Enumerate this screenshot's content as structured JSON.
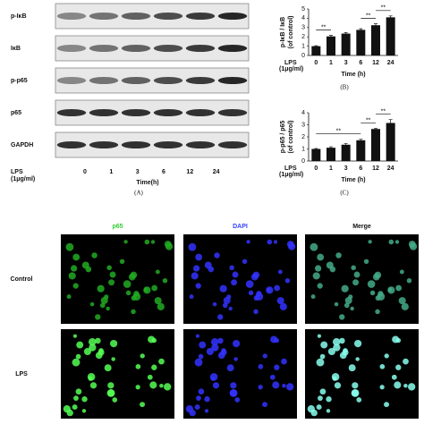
{
  "blot": {
    "bands": [
      "p-IκB",
      "IκB",
      "p-p65",
      "p65",
      "GAPDH"
    ],
    "row_label": [
      "LPS",
      "(1μg/ml)"
    ],
    "lanes": [
      "0",
      "1",
      "3",
      "6",
      "12",
      "24"
    ],
    "xlabel": "Time(h)",
    "panel_label": "(A)"
  },
  "chart_data": [
    {
      "type": "bar",
      "ylabel": "p-IκB / IκB",
      "ylabel2": "(of control)",
      "xlabel": "Time (h)",
      "row_label": [
        "LPS",
        "(1μg/ml)"
      ],
      "panel_label": "(B)",
      "categories": [
        "0",
        "1",
        "3",
        "6",
        "12",
        "24"
      ],
      "values": [
        1,
        2.05,
        2.35,
        2.75,
        3.25,
        4.1
      ],
      "errors": [
        0.05,
        0.1,
        0.1,
        0.12,
        0.15,
        0.15
      ],
      "color": "#111111",
      "ylim": [
        0,
        5
      ],
      "yticks": [
        0,
        1,
        2,
        3,
        4,
        5
      ],
      "annotations": [
        {
          "from": 0,
          "to": 1,
          "text": "**"
        },
        {
          "from": 3,
          "to": 4,
          "text": "**"
        },
        {
          "from": 4,
          "to": 5,
          "text": "**"
        }
      ]
    },
    {
      "type": "bar",
      "ylabel": "p-p65 / p65",
      "ylabel2": "(of control)",
      "xlabel": "Time (h)",
      "row_label": [
        "LPS",
        "(1μg/ml)"
      ],
      "panel_label": "(C)",
      "categories": [
        "0",
        "1",
        "3",
        "6",
        "12",
        "24"
      ],
      "values": [
        1,
        1.1,
        1.35,
        1.72,
        2.65,
        3.15
      ],
      "errors": [
        0.04,
        0.08,
        0.1,
        0.08,
        0.06,
        0.28
      ],
      "color": "#111111",
      "ylim": [
        0,
        4
      ],
      "yticks": [
        0,
        1,
        2,
        3,
        4
      ],
      "annotations": [
        {
          "from": 0,
          "to": 3,
          "text": "**"
        },
        {
          "from": 3,
          "to": 4,
          "text": "**"
        },
        {
          "from": 4,
          "to": 5,
          "text": "**"
        }
      ]
    }
  ],
  "micrographs": {
    "columns": [
      "p65",
      "DAPI",
      "Merge"
    ],
    "column_colors": [
      "#33cc33",
      "#3344ff",
      "#111111"
    ],
    "rows": [
      "Control",
      "LPS"
    ]
  }
}
